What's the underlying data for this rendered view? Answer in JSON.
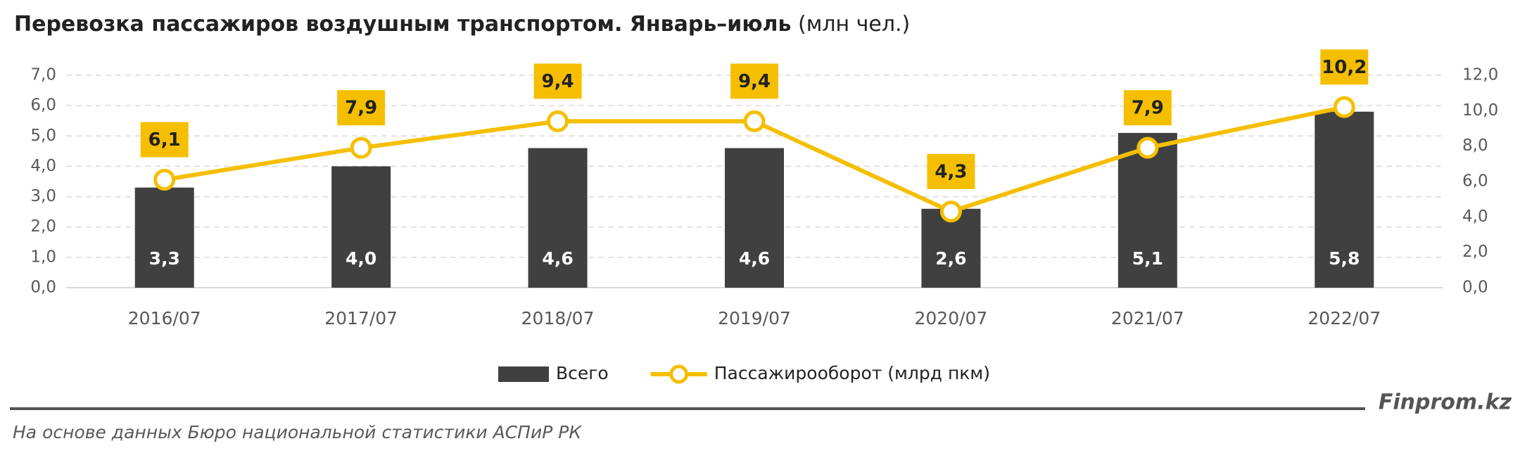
{
  "chart_data": {
    "type": "bar",
    "title": "Перевозка пассажиров воздушным транспортом. Январь–июль",
    "subtitle": "(млн чел.)",
    "categories": [
      "2016/07",
      "2017/07",
      "2018/07",
      "2019/07",
      "2020/07",
      "2021/07",
      "2022/07"
    ],
    "series": [
      {
        "name": "Всего",
        "type": "bar",
        "color": "#404040",
        "values": [
          3.3,
          4.0,
          4.6,
          4.6,
          2.6,
          5.1,
          5.8
        ],
        "value_labels": [
          "3,3",
          "4,0",
          "4,6",
          "4,6",
          "2,6",
          "5,1",
          "5,8"
        ]
      },
      {
        "name": "Пассажирооборот (млрд пкм)",
        "type": "line",
        "axis": "y2",
        "color": "#f5bf00",
        "values": [
          6.1,
          7.9,
          9.4,
          9.4,
          4.3,
          7.9,
          10.2
        ],
        "value_labels": [
          "6,1",
          "7,9",
          "9,4",
          "9,4",
          "4,3",
          "7,9",
          "10,2"
        ]
      }
    ],
    "ylim": [
      0,
      7
    ],
    "yticks": [
      {
        "value": 0,
        "label": "0,0"
      },
      {
        "value": 1,
        "label": "1,0"
      },
      {
        "value": 2,
        "label": "2,0"
      },
      {
        "value": 3,
        "label": "3,0"
      },
      {
        "value": 4,
        "label": "4,0"
      },
      {
        "value": 5,
        "label": "5,0"
      },
      {
        "value": 6,
        "label": "6,0"
      },
      {
        "value": 7,
        "label": "7,0"
      }
    ],
    "y2lim": [
      0,
      12
    ],
    "y2ticks": [
      {
        "value": 0,
        "label": "0,0"
      },
      {
        "value": 2,
        "label": "2,0"
      },
      {
        "value": 4,
        "label": "4,0"
      },
      {
        "value": 6,
        "label": "6,0"
      },
      {
        "value": 8,
        "label": "8,0"
      },
      {
        "value": 10,
        "label": "10,0"
      },
      {
        "value": 12,
        "label": "12,0"
      }
    ],
    "grid": true
  },
  "footer": {
    "brand": "Finprom.kz",
    "source": "На основе данных Бюро национальной статистики АСПиР РК"
  }
}
